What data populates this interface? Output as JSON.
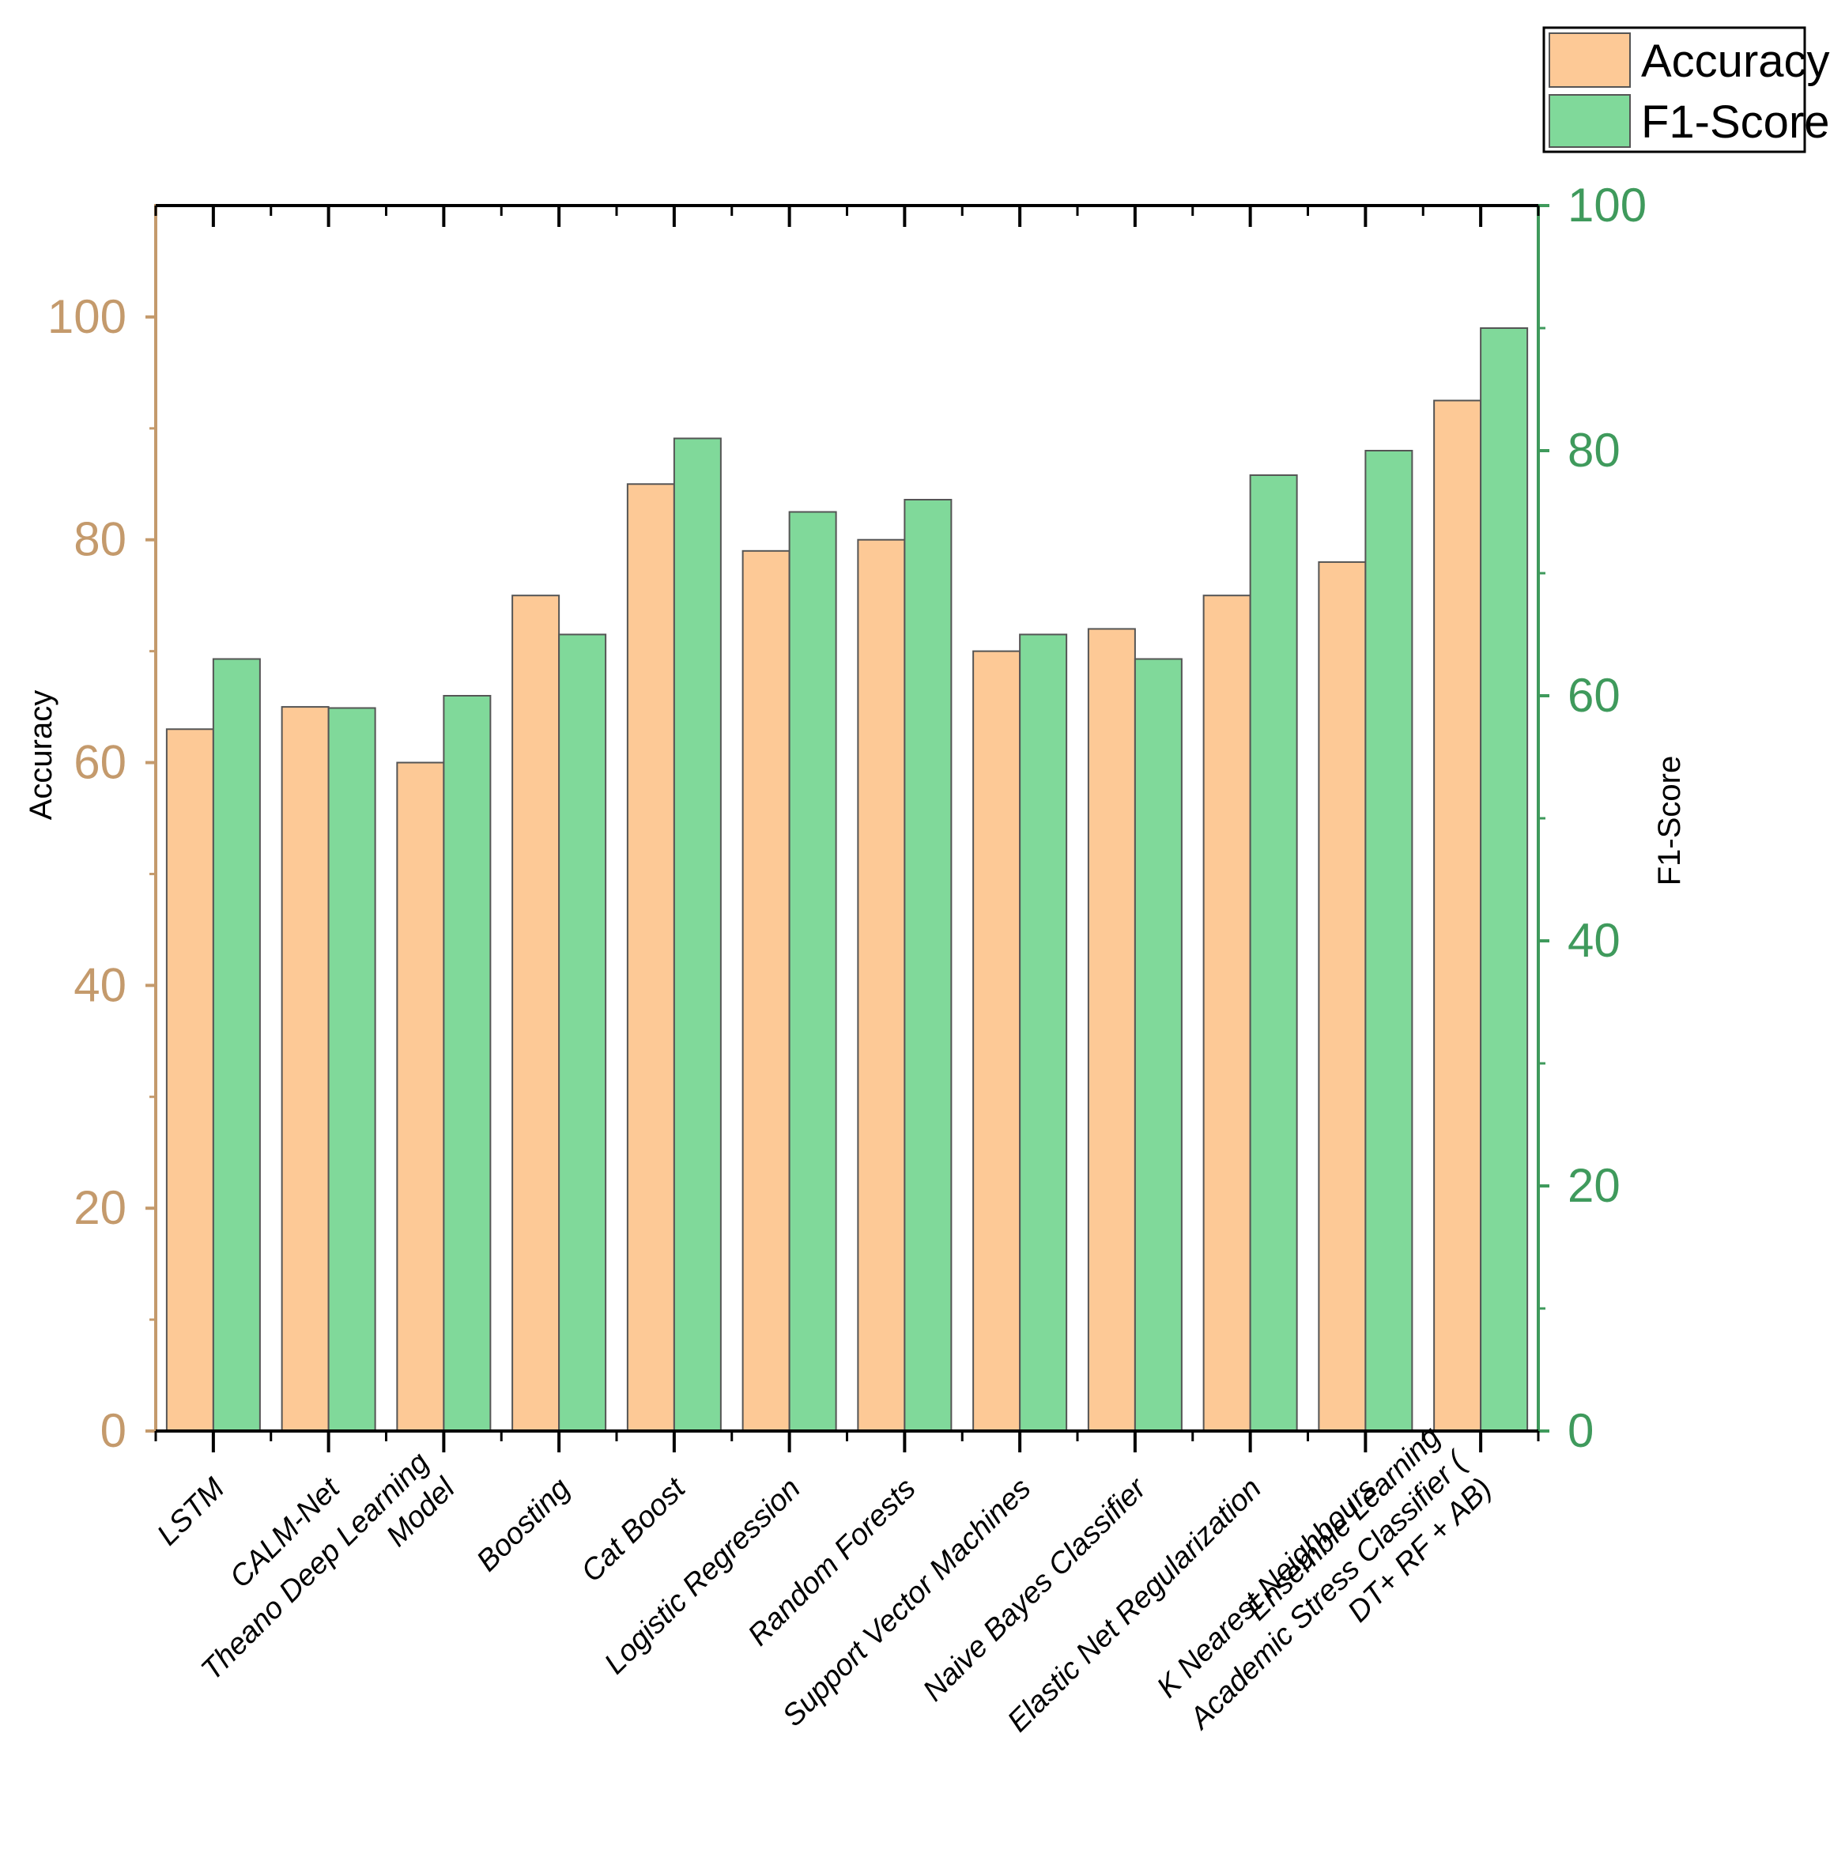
{
  "chart_data": {
    "type": "bar",
    "categories": [
      [
        "LSTM"
      ],
      [
        "CALM-Net"
      ],
      [
        "Theano Deep Learning",
        "Model"
      ],
      [
        "Boosting"
      ],
      [
        "Cat Boost"
      ],
      [
        "Logistic Regression"
      ],
      [
        "Random Forests"
      ],
      [
        "Support Vector Machines"
      ],
      [
        "Naive Bayes Classifier"
      ],
      [
        "Elastic Net Regularization"
      ],
      [
        "K Nearest Neighbours"
      ],
      [
        "Ensemble Learning",
        "Academic Stress Classifier (",
        "DT+ RF + AB)"
      ]
    ],
    "series": [
      {
        "name": "Accuracy",
        "axis": "left",
        "color": "#fdc996",
        "values": [
          63,
          65,
          60,
          75,
          85,
          79,
          80,
          70,
          72,
          75,
          78,
          92.5
        ]
      },
      {
        "name": "F1-Score",
        "axis": "right",
        "color": "#80d99a",
        "values": [
          63,
          59,
          60,
          65,
          81,
          75,
          76,
          65,
          63,
          78,
          80,
          90
        ]
      }
    ],
    "left_axis": {
      "label": "Accuracy",
      "min": 0,
      "max": 110,
      "ticks": [
        0,
        20,
        40,
        60,
        80,
        100
      ],
      "minor_ticks": [
        10,
        30,
        50,
        70,
        90
      ],
      "color": "#c49a6c"
    },
    "right_axis": {
      "label": "F1-Score",
      "min": 0,
      "max": 100,
      "ticks": [
        0,
        20,
        40,
        60,
        80,
        100
      ],
      "minor_ticks": [
        10,
        30,
        50,
        70,
        90
      ],
      "color": "#3f9a5c"
    },
    "legend": {
      "position": "top-right",
      "entries": [
        "Accuracy",
        "F1-Score"
      ]
    },
    "title": ""
  }
}
